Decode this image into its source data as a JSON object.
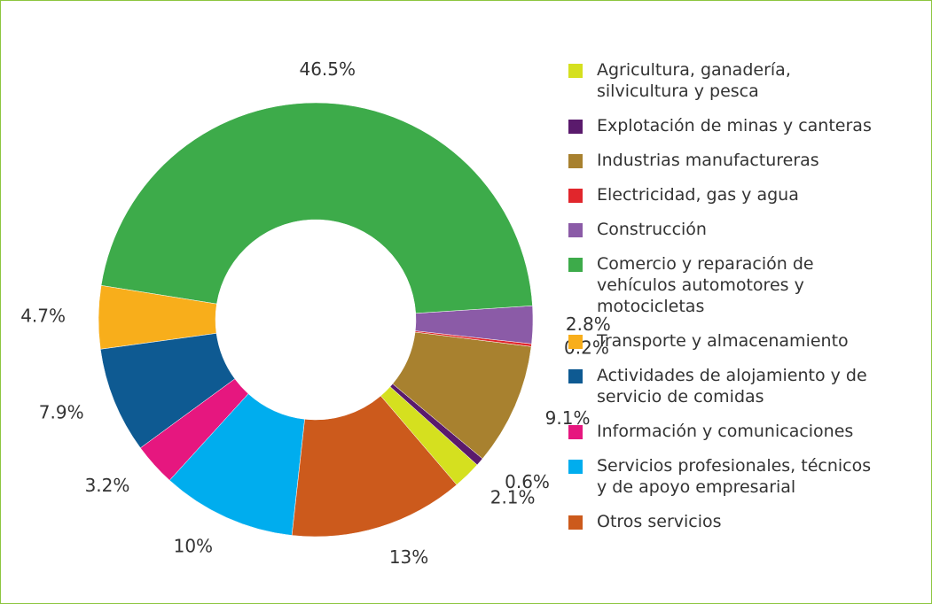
{
  "chart_data": {
    "type": "donut",
    "categories": [
      "Agricultura, ganadería,\nsilvicultura y pesca",
      "Explotación de minas y canteras",
      "Industrias manufactureras",
      "Electricidad, gas y agua",
      "Construcción",
      "Comercio y reparación de\nvehículos automotores y\nmotocicletas",
      "Transporte y almacenamiento",
      "Actividades de alojamiento y de\nservicio de comidas",
      "Información y comunicaciones",
      "Servicios profesionales, técnicos\ny de apoyo empresarial",
      "Otros servicios"
    ],
    "values": [
      2.1,
      0.6,
      9.1,
      0.2,
      2.8,
      46.5,
      4.7,
      7.9,
      3.2,
      10,
      13
    ],
    "value_labels": [
      "2.1%",
      "0.6%",
      "9.1%",
      "0.2%",
      "2.8%",
      "46.5%",
      "4.7%",
      "7.9%",
      "3.2%",
      "10%",
      "13%"
    ],
    "colors": [
      "#d5e01f",
      "#5a1a6c",
      "#a8812f",
      "#e1262c",
      "#8b5ba7",
      "#3dab4a",
      "#f8ae1b",
      "#0e5a92",
      "#e6177f",
      "#00adee",
      "#cc5a1c"
    ]
  }
}
